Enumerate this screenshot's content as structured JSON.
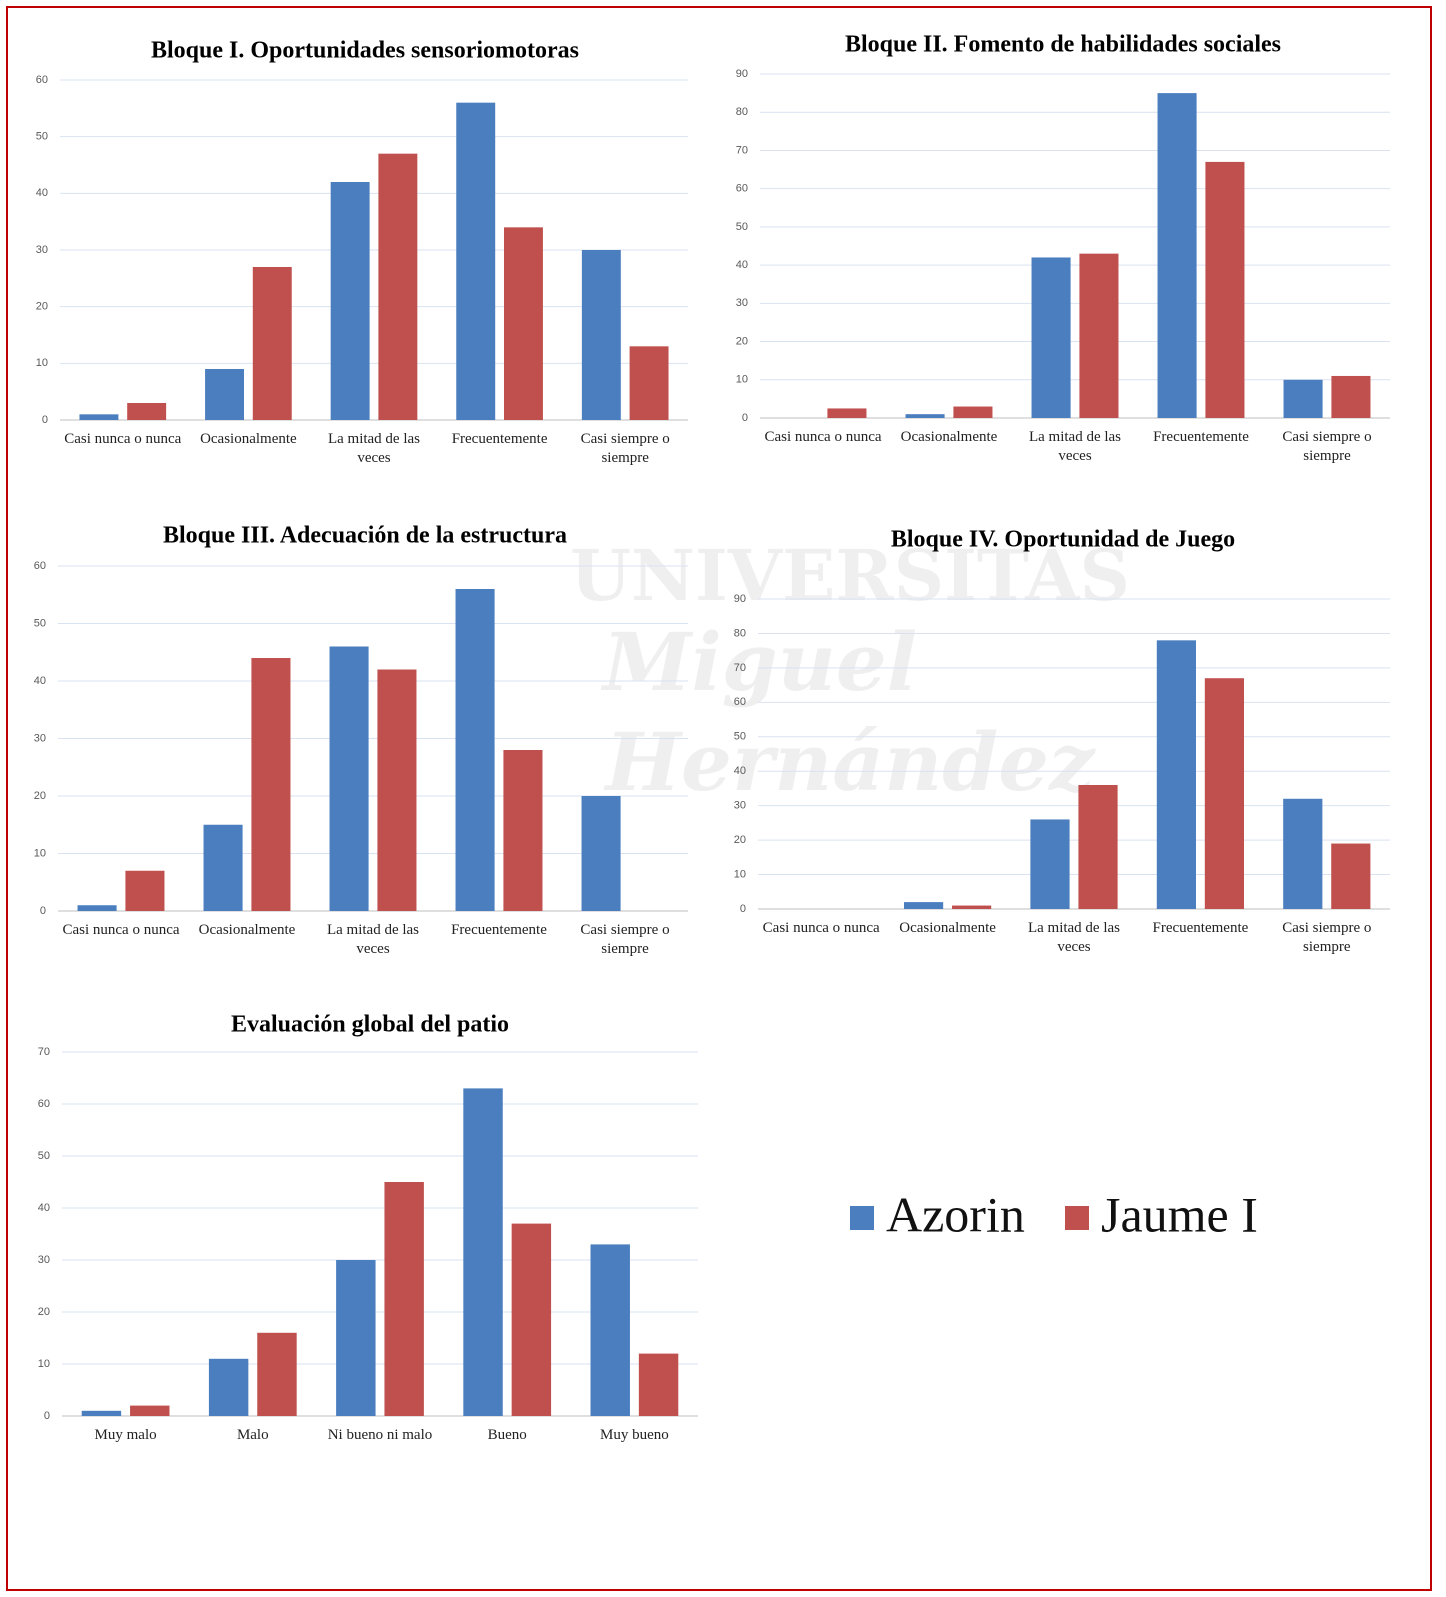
{
  "watermark": [
    "UNIVERSITAS",
    "Miguel",
    "Hernández"
  ],
  "legend": [
    {
      "name": "Azorin",
      "color": "#4a7ebf"
    },
    {
      "name": "Jaume I",
      "color": "#c0504d"
    }
  ],
  "chart_data": [
    {
      "type": "bar",
      "title": "Bloque I. Oportunidades sensoriomotoras",
      "categories": [
        "Casi nunca o nunca",
        "Ocasionalmente",
        "La mitad de las veces",
        "Frecuentemente",
        "Casi siempre o siempre"
      ],
      "series": [
        {
          "values": [
            1,
            9,
            42,
            56,
            30
          ]
        },
        {
          "values": [
            3,
            27,
            47,
            34,
            13
          ]
        }
      ],
      "ylim": [
        0,
        60
      ],
      "yticks": [
        0,
        10,
        20,
        30,
        40,
        50,
        60
      ],
      "grid": true
    },
    {
      "type": "bar",
      "title": "Bloque II. Fomento de habilidades sociales",
      "categories": [
        "Casi nunca o nunca",
        "Ocasionalmente",
        "La mitad de las veces",
        "Frecuentemente",
        "Casi siempre o siempre"
      ],
      "series": [
        {
          "values": [
            0,
            1,
            42,
            85,
            10
          ]
        },
        {
          "values": [
            2.5,
            3,
            43,
            67,
            11
          ]
        }
      ],
      "ylim": [
        0,
        90
      ],
      "yticks": [
        0,
        10,
        20,
        30,
        40,
        50,
        60,
        70,
        80,
        90
      ],
      "grid": true
    },
    {
      "type": "bar",
      "title": "Bloque III. Adecuación de la estructura",
      "categories": [
        "Casi nunca o nunca",
        "Ocasionalmente",
        "La mitad de las veces",
        "Frecuentemente",
        "Casi siempre o siempre"
      ],
      "series": [
        {
          "values": [
            1,
            15,
            46,
            56,
            20
          ]
        },
        {
          "values": [
            7,
            44,
            42,
            28,
            0
          ]
        }
      ],
      "ylim": [
        0,
        60
      ],
      "yticks": [
        0,
        10,
        20,
        30,
        40,
        50,
        60
      ],
      "grid": true
    },
    {
      "type": "bar",
      "title": "Bloque IV. Oportunidad de Juego",
      "categories": [
        "Casi nunca o nunca",
        "Ocasionalmente",
        "La mitad de las veces",
        "Frecuentemente",
        "Casi siempre o siempre"
      ],
      "series": [
        {
          "values": [
            0,
            2,
            26,
            78,
            32
          ]
        },
        {
          "values": [
            0,
            1,
            36,
            67,
            19
          ]
        }
      ],
      "ylim": [
        0,
        90
      ],
      "yticks": [
        0,
        10,
        20,
        30,
        40,
        50,
        60,
        70,
        80,
        90
      ],
      "grid": true
    },
    {
      "type": "bar",
      "title": "Evaluación global del patio",
      "categories": [
        "Muy malo",
        "Malo",
        "Ni bueno ni malo",
        "Bueno",
        "Muy bueno"
      ],
      "series": [
        {
          "values": [
            1,
            11,
            30,
            63,
            33
          ]
        },
        {
          "values": [
            2,
            16,
            45,
            37,
            12
          ]
        }
      ],
      "ylim": [
        0,
        70
      ],
      "yticks": [
        0,
        10,
        20,
        30,
        40,
        50,
        60,
        70
      ],
      "grid": true
    }
  ]
}
